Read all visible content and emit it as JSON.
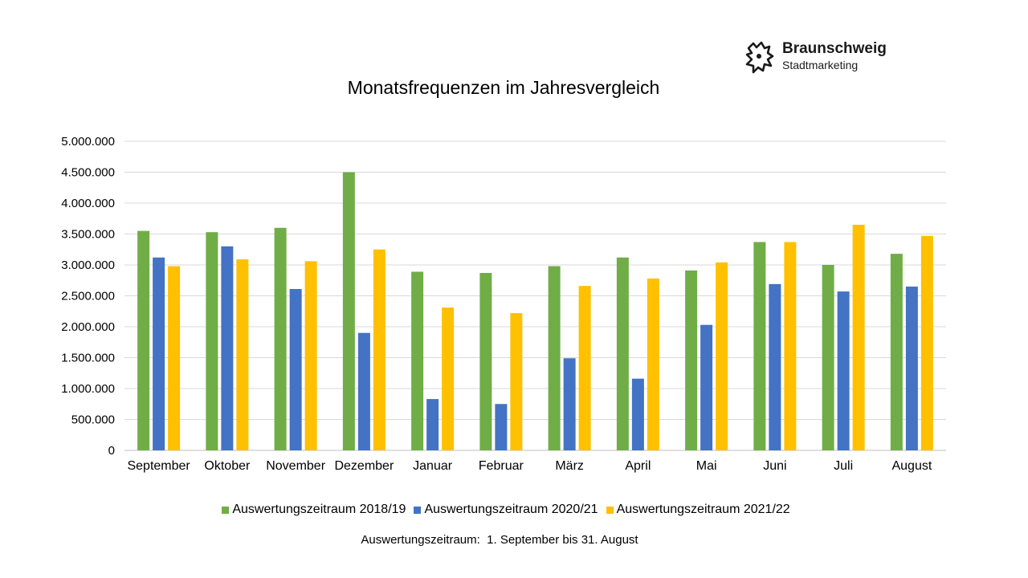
{
  "logo": {
    "name": "Braunschweig",
    "subtitle": "Stadtmarketing"
  },
  "colors": {
    "green": "#70ad47",
    "blue": "#4472c4",
    "yellow": "#ffc000",
    "grid": "#d9d9d9",
    "axis": "#bfbfbf"
  },
  "chart_data": {
    "type": "bar",
    "title": "Monatsfrequenzen im Jahresvergleich",
    "xlabel": "",
    "ylabel": "",
    "ylim": [
      0,
      5000000
    ],
    "yticks": [
      "0",
      "500.000",
      "1.000.000",
      "1.500.000",
      "2.000.000",
      "2.500.000",
      "3.000.000",
      "3.500.000",
      "4.000.000",
      "4.500.000",
      "5.000.000"
    ],
    "grid": true,
    "legend_position": "bottom",
    "categories": [
      "September",
      "Oktober",
      "November",
      "Dezember",
      "Januar",
      "Februar",
      "März",
      "April",
      "Mai",
      "Juni",
      "Juli",
      "August"
    ],
    "series": [
      {
        "name": "Auswertungszeitraum 2018/19",
        "color": "#70ad47",
        "values": [
          3550000,
          3530000,
          3600000,
          4500000,
          2890000,
          2870000,
          2980000,
          3120000,
          2910000,
          3370000,
          3000000,
          3180000
        ]
      },
      {
        "name": "Auswertungszeitraum 2020/21",
        "color": "#4472c4",
        "values": [
          3120000,
          3300000,
          2610000,
          1900000,
          830000,
          750000,
          1490000,
          1160000,
          2030000,
          2690000,
          2570000,
          2650000
        ]
      },
      {
        "name": "Auswertungszeitraum 2021/22",
        "color": "#ffc000",
        "values": [
          2980000,
          3090000,
          3060000,
          3250000,
          2310000,
          2220000,
          2660000,
          2780000,
          3040000,
          3370000,
          3650000,
          3470000
        ]
      }
    ]
  },
  "footnote": "Auswertungszeitraum:  1. September bis 31. August"
}
